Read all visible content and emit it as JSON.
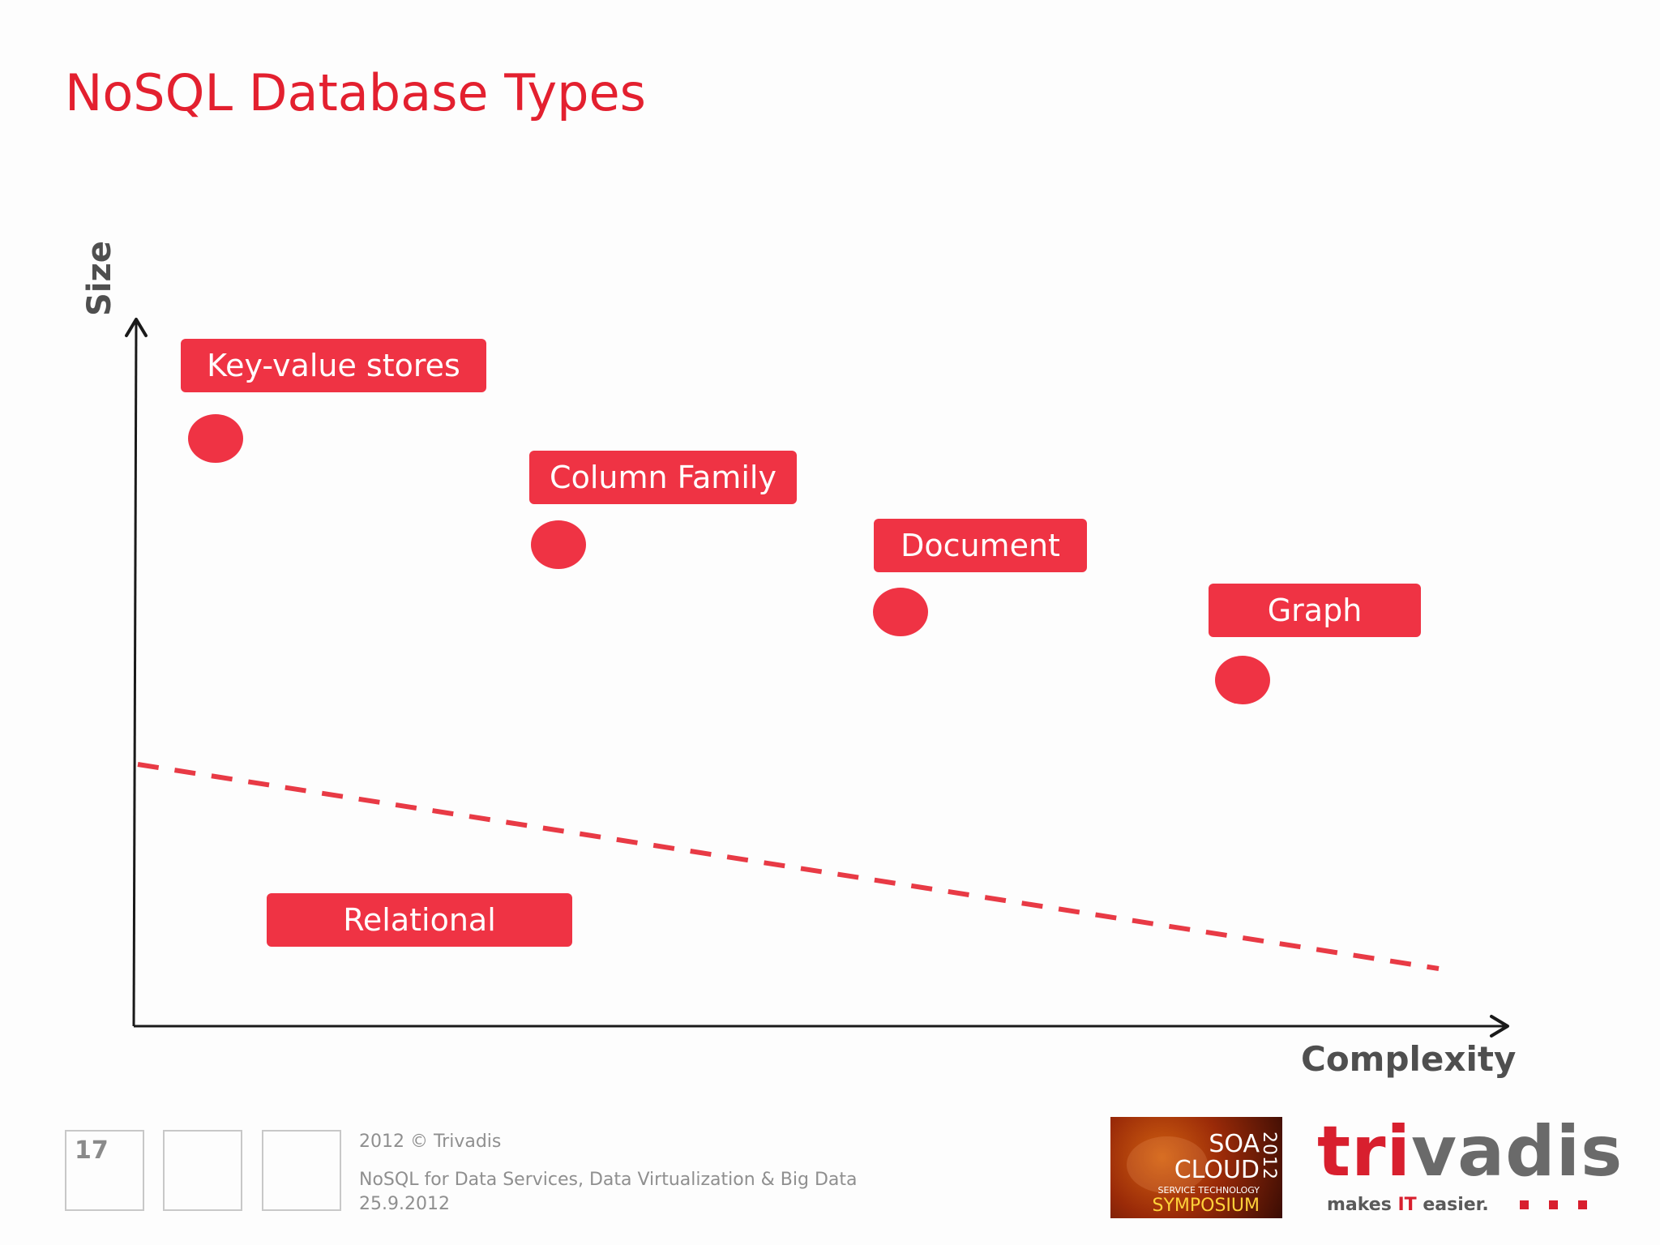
{
  "slide": {
    "title": "NoSQL Database Types"
  },
  "diagram": {
    "y_axis_label": "Size",
    "x_axis_label": "Complexity",
    "labels": {
      "key_value": "Key-value stores",
      "column_family": "Column Family",
      "document": "Document",
      "graph": "Graph",
      "relational": "Relational"
    },
    "colors": {
      "accent": "#ef3344",
      "title": "#e3202f",
      "axis": "#1a1a1a",
      "dashed_line": "#e83a45"
    }
  },
  "footer": {
    "page_number": "17",
    "copyright": "2012 © Trivadis",
    "subtitle": "NoSQL for Data Services, Data Virtualization & Big Data",
    "date": "25.9.2012"
  },
  "logos": {
    "soa": {
      "line1": "SOA",
      "line2": "CLOUD",
      "line3": "SERVICE TECHNOLOGY",
      "line4": "SYMPOSIUM",
      "year": "2012"
    },
    "trivadis": {
      "part1": "tri",
      "part2": "vadis",
      "tagline_pre": "makes ",
      "tagline_it": "IT",
      "tagline_post": " easier."
    }
  }
}
